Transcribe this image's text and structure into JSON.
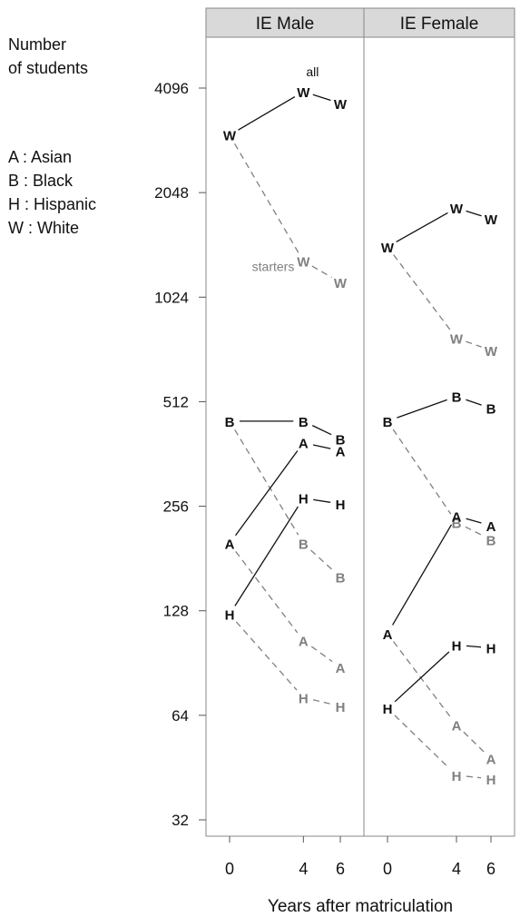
{
  "side_note": {
    "title_lines": [
      "Number",
      "of students"
    ],
    "legend": [
      {
        "letter": "A",
        "label": "A : Asian"
      },
      {
        "letter": "B",
        "label": "B : Black"
      },
      {
        "letter": "H",
        "label": "H : Hispanic"
      },
      {
        "letter": "W",
        "label": "W : White"
      }
    ]
  },
  "chart_data": {
    "type": "line",
    "y_scale": "log2",
    "ylim": [
      30,
      5200
    ],
    "y_ticks": [
      32,
      64,
      128,
      256,
      512,
      1024,
      2048,
      4096
    ],
    "x_ticks": [
      0,
      4,
      6
    ],
    "xlabel": "Years after matriculation",
    "colors": {
      "all": "#111111",
      "starters": "#808080"
    },
    "annotations": {
      "all": "all",
      "starters": "starters"
    },
    "panels": [
      {
        "title": "IE Male",
        "series": [
          {
            "group": "W",
            "kind": "all",
            "x": [
              0,
              4,
              6
            ],
            "y": [
              3000,
              4000,
              3700
            ]
          },
          {
            "group": "W",
            "kind": "starters",
            "x": [
              0,
              4,
              6
            ],
            "y": [
              3000,
              1300,
              1130
            ]
          },
          {
            "group": "B",
            "kind": "all",
            "x": [
              0,
              4,
              6
            ],
            "y": [
              450,
              450,
              400
            ]
          },
          {
            "group": "B",
            "kind": "starters",
            "x": [
              0,
              4,
              6
            ],
            "y": [
              450,
              200,
              160
            ]
          },
          {
            "group": "A",
            "kind": "all",
            "x": [
              0,
              4,
              6
            ],
            "y": [
              200,
              390,
              370
            ]
          },
          {
            "group": "A",
            "kind": "starters",
            "x": [
              0,
              4,
              6
            ],
            "y": [
              200,
              105,
              88
            ]
          },
          {
            "group": "H",
            "kind": "all",
            "x": [
              0,
              4,
              6
            ],
            "y": [
              125,
              270,
              260
            ]
          },
          {
            "group": "H",
            "kind": "starters",
            "x": [
              0,
              4,
              6
            ],
            "y": [
              125,
              72,
              68
            ]
          }
        ]
      },
      {
        "title": "IE Female",
        "series": [
          {
            "group": "W",
            "kind": "all",
            "x": [
              0,
              4,
              6
            ],
            "y": [
              1430,
              1850,
              1720
            ]
          },
          {
            "group": "W",
            "kind": "starters",
            "x": [
              0,
              4,
              6
            ],
            "y": [
              1430,
              780,
              720
            ]
          },
          {
            "group": "B",
            "kind": "all",
            "x": [
              0,
              4,
              6
            ],
            "y": [
              450,
              530,
              490
            ]
          },
          {
            "group": "B",
            "kind": "starters",
            "x": [
              0,
              4,
              6
            ],
            "y": [
              450,
              230,
              205
            ]
          },
          {
            "group": "A",
            "kind": "all",
            "x": [
              0,
              4,
              6
            ],
            "y": [
              110,
              240,
              225
            ]
          },
          {
            "group": "A",
            "kind": "starters",
            "x": [
              0,
              4,
              6
            ],
            "y": [
              110,
              60,
              48
            ]
          },
          {
            "group": "H",
            "kind": "all",
            "x": [
              0,
              4,
              6
            ],
            "y": [
              67,
              102,
              100
            ]
          },
          {
            "group": "H",
            "kind": "starters",
            "x": [
              0,
              4,
              6
            ],
            "y": [
              67,
              43,
              42
            ]
          }
        ]
      }
    ]
  }
}
